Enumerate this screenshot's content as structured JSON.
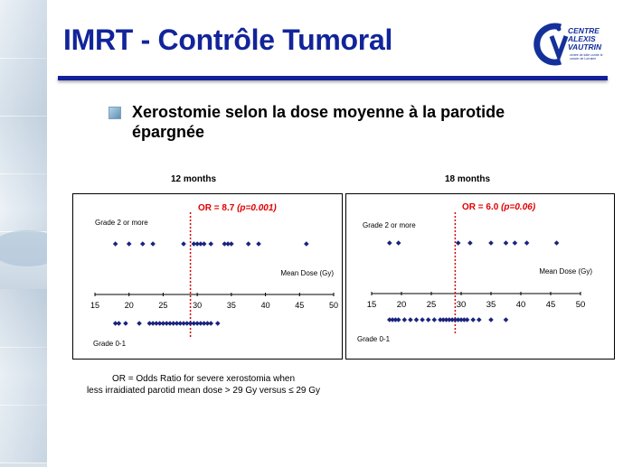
{
  "slide": {
    "title": "IMRT - Contrôle Tumoral",
    "bullet": "Xerostomie selon la dose moyenne à la parotide épargnée",
    "logo": {
      "line1": "CENTRE",
      "line2": "ALEXIS",
      "line3": "VAUTRIN",
      "sub": "centre de lutte contre le cancer de Lorraine"
    },
    "footnote_line1": "OR = Odds Ratio for severe xerostomia when",
    "footnote_line2": "less irraidiated parotid mean dose > 29 Gy versus ≤ 29 Gy"
  },
  "colors": {
    "title": "#12249a",
    "points": "#1a237e",
    "or_text": "#e00000",
    "threshold_line": "#d40000"
  },
  "chart_data": [
    {
      "type": "scatter",
      "title": "12 months",
      "annotation_bold": "OR = 8.7 ",
      "annotation_italic": "(p=0.001)",
      "upper_label": "Grade 2 or more",
      "lower_label": "Grade 0-1",
      "xlabel": "Mean Dose (Gy)",
      "xlim": [
        15,
        50
      ],
      "xticks": [
        "15",
        "20",
        "25",
        "30",
        "35",
        "40",
        "45",
        "50"
      ],
      "threshold": 29,
      "grade2_plus": [
        18,
        20,
        22,
        23.5,
        28,
        29.5,
        30,
        30.5,
        31,
        32,
        34,
        34.5,
        35,
        37.5,
        39,
        46
      ],
      "grade0_1": [
        18,
        18.5,
        19.5,
        21.5,
        23,
        23.5,
        24,
        24.5,
        25,
        25.5,
        26,
        26.5,
        27,
        27.5,
        28,
        28.5,
        29,
        29.5,
        30,
        30.5,
        31,
        31.5,
        32,
        33
      ]
    },
    {
      "type": "scatter",
      "title": "18 months",
      "annotation_bold": "OR = 6.0 ",
      "annotation_italic": "(p=0.06)",
      "upper_label": "Grade 2 or more",
      "lower_label": "Grade 0-1",
      "xlabel": "Mean Dose (Gy)",
      "xlim": [
        15,
        50
      ],
      "xticks": [
        "15",
        "20",
        "25",
        "30",
        "35",
        "40",
        "45",
        "50"
      ],
      "threshold": 29,
      "grade2_plus": [
        18,
        19.5,
        29.5,
        31.5,
        35,
        37.5,
        39,
        41,
        46
      ],
      "grade0_1": [
        18,
        18.5,
        19,
        19.5,
        20.5,
        21.5,
        22.5,
        23.5,
        24.5,
        25.5,
        26.5,
        27,
        27.5,
        28,
        28.5,
        29,
        29.5,
        30,
        30.5,
        31,
        32,
        33,
        35,
        37.5
      ]
    }
  ]
}
